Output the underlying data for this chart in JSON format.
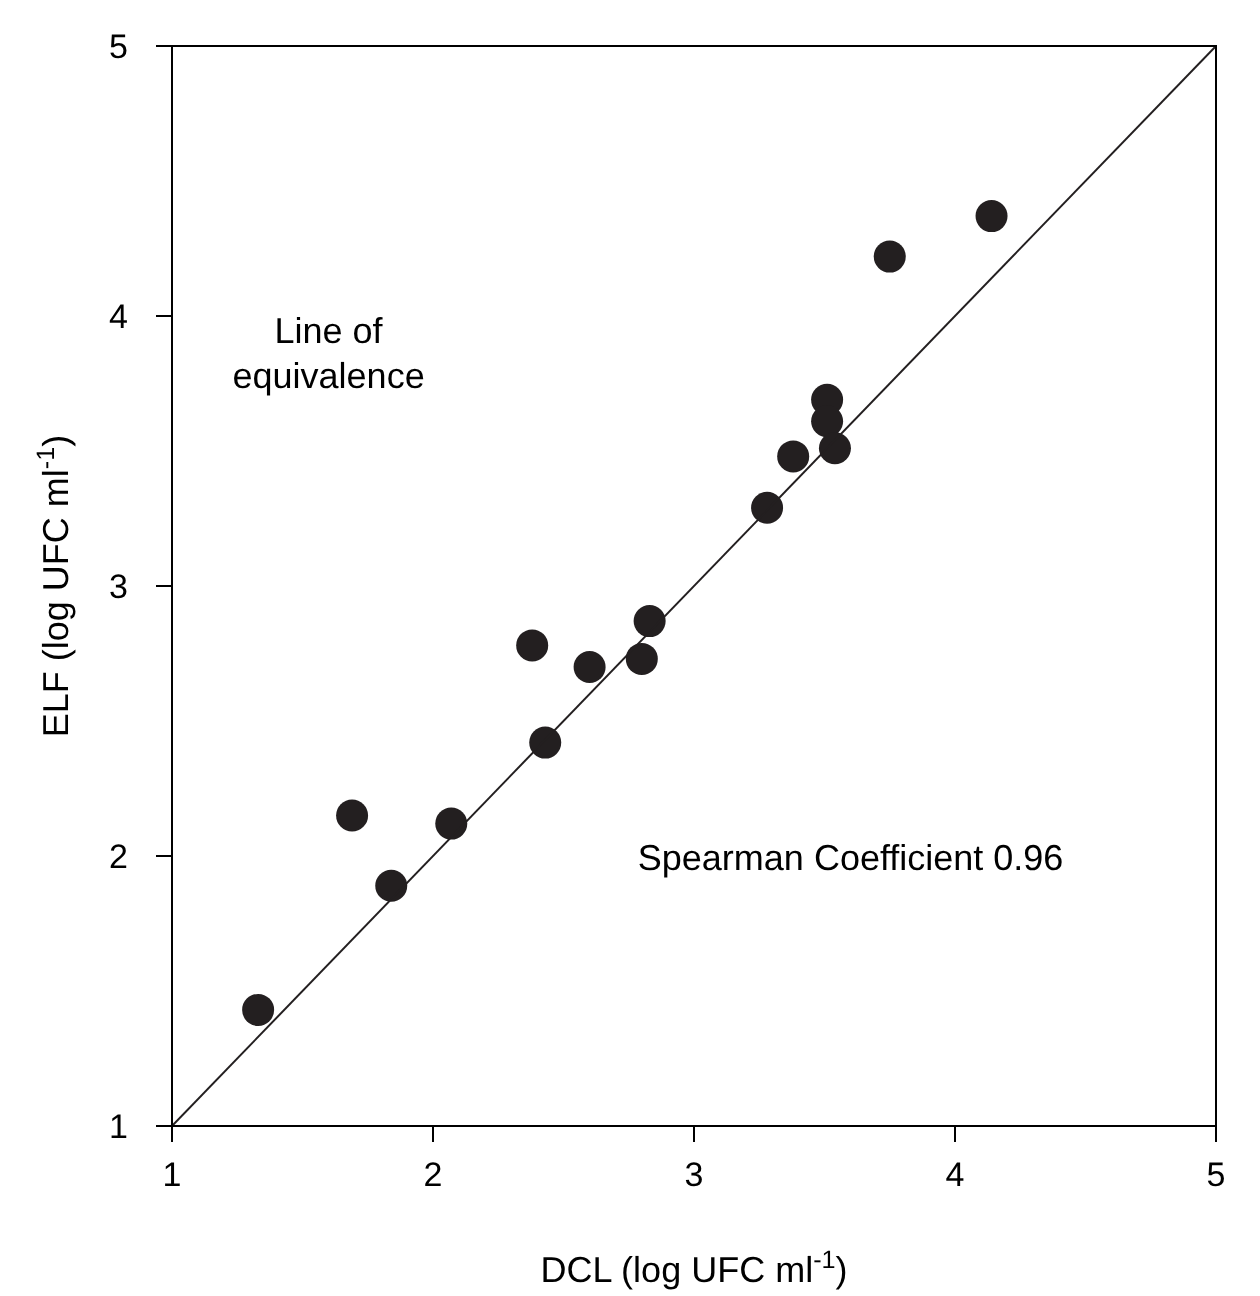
{
  "chart_data": {
    "type": "scatter",
    "xlabel": "DCL (log UFC ml$^{-1}$)",
    "ylabel": "ELF (log UFC ml$^{-1}$)",
    "xlim": [
      1,
      5
    ],
    "ylim": [
      1,
      5
    ],
    "xticks": [
      1,
      2,
      3,
      4,
      5
    ],
    "yticks": [
      1,
      2,
      3,
      4,
      5
    ],
    "grid": false,
    "marker": "circle",
    "series": [
      {
        "color": "#231f20",
        "x": [
          1.33,
          1.69,
          1.84,
          2.07,
          2.38,
          2.43,
          2.6,
          2.8,
          2.83,
          3.28,
          3.38,
          3.51,
          3.51,
          3.54,
          3.75,
          4.14
        ],
        "values": [
          1.43,
          2.15,
          1.89,
          2.12,
          2.78,
          2.42,
          2.7,
          2.73,
          2.87,
          3.29,
          3.48,
          3.69,
          3.61,
          3.51,
          4.22,
          4.37
        ]
      },
      {
        "type": "line",
        "color": "#231f20",
        "x": [
          1,
          5
        ],
        "values": [
          1,
          5
        ],
        "marker": "none",
        "line_style": "solid"
      }
    ],
    "annotations": [
      "Line of\nequivalence",
      "Spearman Coefficient 0.96"
    ]
  }
}
